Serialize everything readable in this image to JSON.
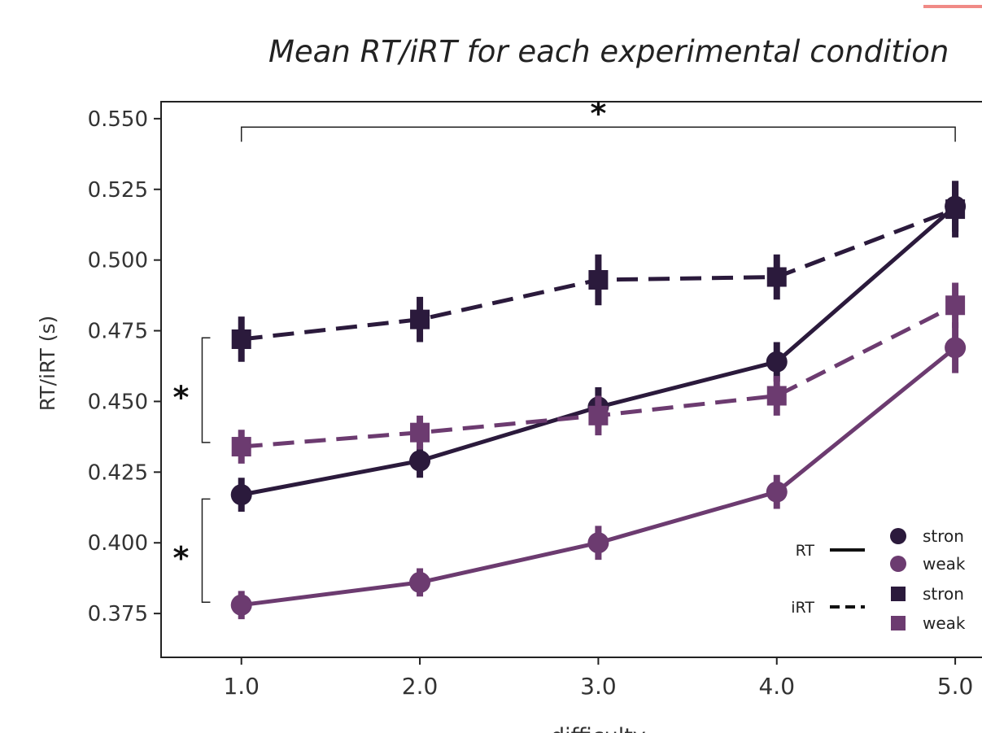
{
  "title": "Mean RT/iRT for each experimental condition",
  "colors": {
    "strong": "#2b1a3c",
    "weak": "#6c3b70",
    "accent_line": "#f08a86"
  },
  "chart_data": {
    "type": "line",
    "xlabel": "difficulty",
    "ylabel": "RT/iRT (s)",
    "x": [
      1.0,
      2.0,
      3.0,
      4.0,
      5.0
    ],
    "x_tick_labels": [
      "1.0",
      "2.0",
      "3.0",
      "4.0",
      "5.0"
    ],
    "y_ticks": [
      0.375,
      0.4,
      0.425,
      0.45,
      0.475,
      0.5,
      0.525,
      0.55
    ],
    "y_tick_labels": [
      "0.375",
      "0.400",
      "0.425",
      "0.450",
      "0.475",
      "0.500",
      "0.525",
      "0.550"
    ],
    "xlim": [
      0.55,
      5.15
    ],
    "ylim": [
      0.3595,
      0.556
    ],
    "grid": false,
    "series": [
      {
        "key": "rt_strong",
        "measure": "RT",
        "color": "strong",
        "marker": "circle",
        "dash": false,
        "values": [
          0.417,
          0.429,
          0.448,
          0.464,
          0.519
        ],
        "err": [
          0.006,
          0.006,
          0.007,
          0.007,
          0.009
        ]
      },
      {
        "key": "rt_weak",
        "measure": "RT",
        "color": "weak",
        "marker": "circle",
        "dash": false,
        "values": [
          0.378,
          0.386,
          0.4,
          0.418,
          0.469
        ],
        "err": [
          0.005,
          0.005,
          0.006,
          0.006,
          0.009
        ]
      },
      {
        "key": "irt_strong",
        "measure": "iRT",
        "color": "strong",
        "marker": "square",
        "dash": true,
        "values": [
          0.472,
          0.479,
          0.493,
          0.494,
          0.518
        ],
        "err": [
          0.008,
          0.008,
          0.009,
          0.008,
          0.01
        ]
      },
      {
        "key": "irt_weak",
        "measure": "iRT",
        "color": "weak",
        "marker": "square",
        "dash": true,
        "values": [
          0.434,
          0.439,
          0.445,
          0.452,
          0.484
        ],
        "err": [
          0.006,
          0.006,
          0.007,
          0.007,
          0.008
        ]
      }
    ],
    "legend": {
      "placement": "bottom-right",
      "style_labels": [
        "RT",
        "iRT"
      ],
      "entries": [
        {
          "marker": "circle",
          "color": "strong",
          "label": "stron"
        },
        {
          "marker": "circle",
          "color": "weak",
          "label": "weak"
        },
        {
          "marker": "square",
          "color": "strong",
          "label": "stron"
        },
        {
          "marker": "square",
          "color": "weak",
          "label": "weak"
        }
      ]
    },
    "annotations": [
      {
        "type": "bracket-horizontal",
        "from_x": 1.0,
        "to_x": 5.0,
        "at_y": 0.547,
        "label": "*"
      },
      {
        "type": "bracket-vertical",
        "at_x": 0.78,
        "from_y": 0.4355,
        "to_y": 0.4725,
        "label": "*"
      },
      {
        "type": "bracket-vertical",
        "at_x": 0.78,
        "from_y": 0.379,
        "to_y": 0.4155,
        "label": "*"
      }
    ]
  }
}
